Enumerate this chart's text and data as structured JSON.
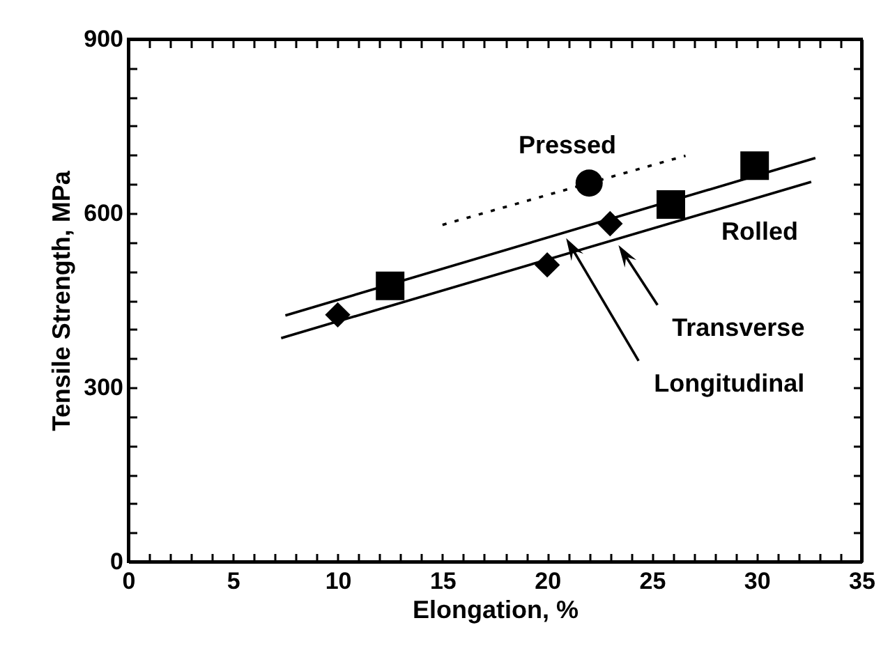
{
  "chart_data": {
    "type": "scatter",
    "xlabel": "Elongation, %",
    "ylabel": "Tensile Strength, MPa",
    "xlim": [
      0,
      35
    ],
    "ylim": [
      0,
      900
    ],
    "xticks": [
      0,
      {
        "value": 1,
        "label": null
      },
      {
        "value": 2,
        "label": null
      },
      {
        "value": 3,
        "label": null
      },
      {
        "value": 4,
        "label": null
      },
      5,
      {
        "value": 6,
        "label": null
      },
      {
        "value": 7,
        "label": null
      },
      {
        "value": 8,
        "label": null
      },
      {
        "value": 9,
        "label": null
      },
      10,
      {
        "value": 11,
        "label": null
      },
      {
        "value": 12,
        "label": null
      },
      {
        "value": 13,
        "label": null
      },
      {
        "value": 14,
        "label": null
      },
      15,
      {
        "value": 16,
        "label": null
      },
      {
        "value": 17,
        "label": null
      },
      {
        "value": 18,
        "label": null
      },
      {
        "value": 19,
        "label": null
      },
      20,
      {
        "value": 21,
        "label": null
      },
      {
        "value": 22,
        "label": null
      },
      {
        "value": 23,
        "label": null
      },
      {
        "value": 24,
        "label": null
      },
      25,
      {
        "value": 26,
        "label": null
      },
      {
        "value": 27,
        "label": null
      },
      {
        "value": 28,
        "label": null
      },
      {
        "value": 29,
        "label": null
      },
      30,
      {
        "value": 31,
        "label": null
      },
      {
        "value": 32,
        "label": null
      },
      {
        "value": 33,
        "label": null
      },
      {
        "value": 34,
        "label": null
      },
      35
    ],
    "yticks": [
      0,
      {
        "value": 50,
        "label": null
      },
      {
        "value": 100,
        "label": null
      },
      {
        "value": 150,
        "label": null
      },
      {
        "value": 200,
        "label": null
      },
      {
        "value": 250,
        "label": null
      },
      300,
      {
        "value": 350,
        "label": null
      },
      {
        "value": 400,
        "label": null
      },
      {
        "value": 450,
        "label": null
      },
      {
        "value": 500,
        "label": null
      },
      {
        "value": 550,
        "label": null
      },
      600,
      {
        "value": 650,
        "label": null
      },
      {
        "value": 700,
        "label": null
      },
      {
        "value": 750,
        "label": null
      },
      {
        "value": 800,
        "label": null
      },
      {
        "value": 850,
        "label": null
      },
      900
    ],
    "series": [
      {
        "type": "scatter",
        "marker": "square",
        "color": "#000000",
        "x": [
          12.5,
          25.9,
          29.9
        ],
        "values": [
          475,
          615,
          682
        ]
      },
      {
        "type": "scatter",
        "marker": "diamond",
        "color": "#000000",
        "x": [
          10,
          20,
          23
        ],
        "values": [
          425,
          511,
          582
        ]
      },
      {
        "type": "scatter",
        "marker": "circle",
        "color": "#000000",
        "x": [
          22
        ],
        "values": [
          652
        ]
      },
      {
        "type": "line",
        "line_style": "solid",
        "color": "#000000",
        "x": [
          7.5,
          32.8
        ],
        "values": [
          424,
          695
        ]
      },
      {
        "type": "line",
        "line_style": "solid",
        "color": "#000000",
        "x": [
          7.3,
          32.6
        ],
        "values": [
          385,
          654
        ]
      },
      {
        "type": "line",
        "line_style": "dotted",
        "color": "#000000",
        "x": [
          15,
          26.6
        ],
        "values": [
          580,
          699
        ]
      }
    ],
    "annotations": [
      "Pressed",
      "Rolled",
      {
        "text": "Transverse",
        "x": 23.4,
        "y": 545
      },
      {
        "text": "Longitudinal",
        "x": 20.9,
        "y": 557
      }
    ]
  }
}
